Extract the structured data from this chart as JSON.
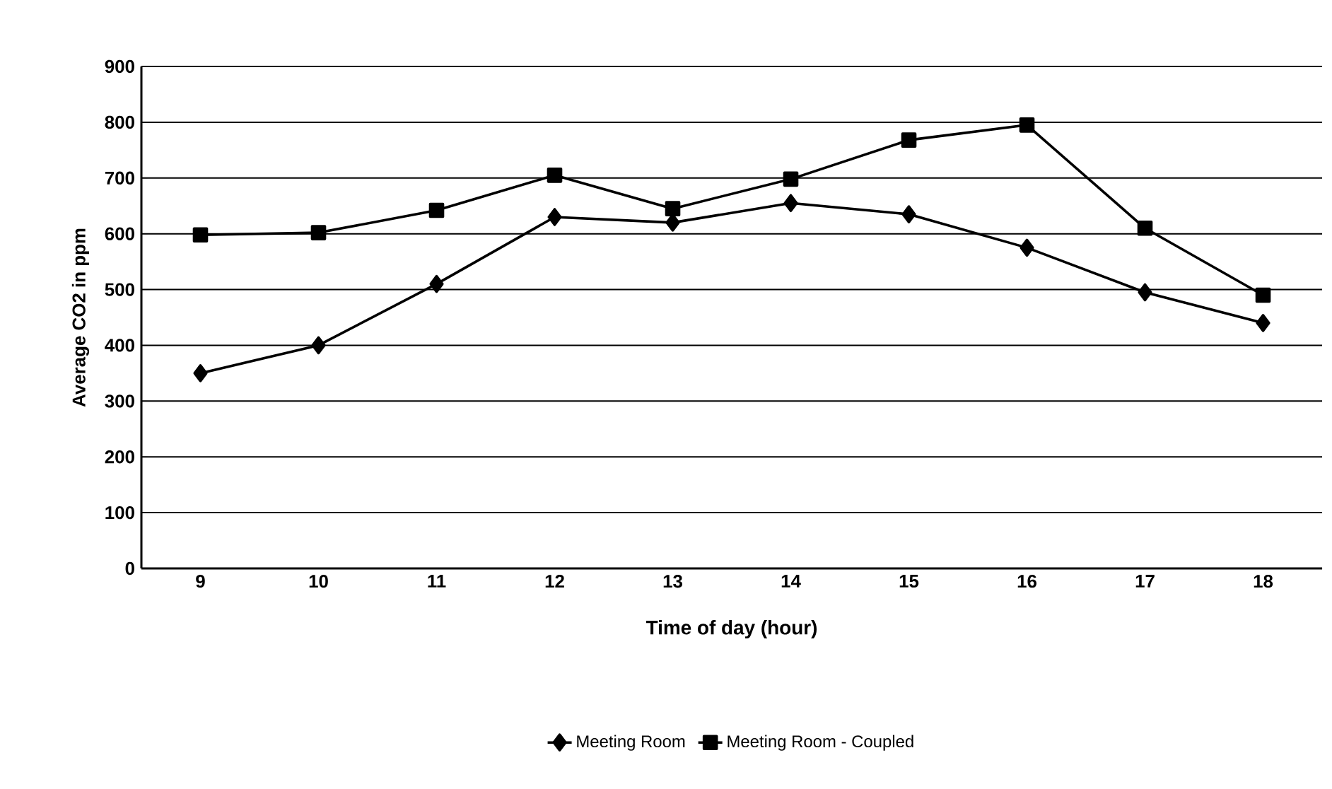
{
  "chart_data": {
    "type": "line",
    "xlabel": "Time of day (hour)",
    "ylabel": "Average CO2 in ppm",
    "categories": [
      "9",
      "10",
      "11",
      "12",
      "13",
      "14",
      "15",
      "16",
      "17",
      "18"
    ],
    "series": [
      {
        "name": "Meeting Room",
        "color": "#000000",
        "marker": "diamond",
        "values": [
          350,
          400,
          510,
          630,
          620,
          655,
          635,
          575,
          495,
          440
        ]
      },
      {
        "name": "Meeting Room - Coupled",
        "color": "#000000",
        "marker": "square",
        "values": [
          598,
          602,
          642,
          705,
          645,
          698,
          768,
          795,
          610,
          490
        ]
      }
    ],
    "ylim": [
      0,
      900
    ],
    "yticks": [
      0,
      100,
      200,
      300,
      400,
      500,
      600,
      700,
      800,
      900
    ],
    "grid": "y",
    "legend": "bottom",
    "line_style": "solid"
  }
}
